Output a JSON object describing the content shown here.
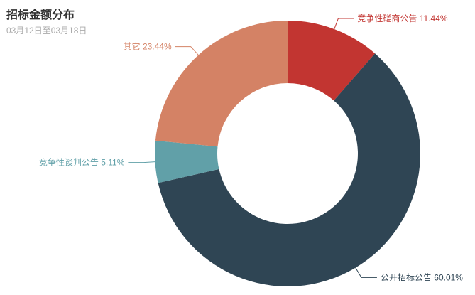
{
  "header": {
    "title": "招标金额分布",
    "subtitle": "03月12日至03月18日"
  },
  "chart_data": {
    "type": "pie",
    "variant": "donut",
    "title": "招标金额分布",
    "subtitle": "03月12日至03月18日",
    "start_angle": "top",
    "direction": "clockwise",
    "inner_radius_ratio": 0.53,
    "legend": "none",
    "labels_position": "outside-with-leader-lines",
    "background": "#ffffff",
    "slices": [
      {
        "name": "竞争性磋商公告",
        "value_pct": 11.44,
        "color": "#c23531"
      },
      {
        "name": "公开招标公告",
        "value_pct": 60.01,
        "color": "#2f4554"
      },
      {
        "name": "竞争性谈判公告",
        "value_pct": 5.11,
        "color": "#61a0a8"
      },
      {
        "name": "其它",
        "value_pct": 23.44,
        "color": "#d48265"
      }
    ]
  }
}
